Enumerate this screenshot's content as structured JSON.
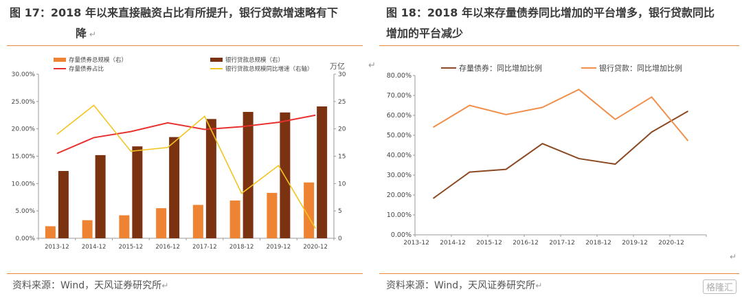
{
  "left": {
    "figure_title_line1": "图 17：2018 年以来直接融资占比有所提升，银行贷款增速略有下",
    "figure_title_line2": "降",
    "source": "资料来源：Wind，天风证券研究所",
    "unit_right": "万亿"
  },
  "right": {
    "figure_title_line1": "图 18：2018 年以来存量债券同比增加的平台增多，银行贷款同比",
    "figure_title_line2": "增加的平台减少",
    "source": "资料来源：Wind，天风证券研究所"
  },
  "watermark": "格隆汇",
  "colors": {
    "orange_bar": "#ee8433",
    "brown_bar": "#7b3210",
    "red_line": "#e8312f",
    "yellow_line": "#f4c320",
    "bond_line": "#8b4a23",
    "loan_line": "#f0904c",
    "rule": "#e8863a"
  },
  "chart_data": [
    {
      "type": "bar",
      "categories": [
        "2013-12",
        "2014-12",
        "2015-12",
        "2016-12",
        "2017-12",
        "2018-12",
        "2019-12",
        "2020-12"
      ],
      "y_left_ticks": [
        "0.00%",
        "5.00%",
        "10.00%",
        "15.00%",
        "20.00%",
        "25.00%",
        "30.00%"
      ],
      "y_right_ticks": [
        "0",
        "5",
        "10",
        "15",
        "20",
        "25",
        "30"
      ],
      "ylim_left": [
        0,
        30
      ],
      "ylim_right": [
        0,
        30
      ],
      "series": [
        {
          "name": "存量债券总规模（右）",
          "type": "bar",
          "axis": "right",
          "values": [
            2.2,
            3.3,
            4.2,
            5.5,
            6.1,
            6.9,
            8.3,
            10.2
          ]
        },
        {
          "name": "银行贷款总规模（右）",
          "type": "bar",
          "axis": "right",
          "values": [
            12.3,
            15.2,
            16.8,
            18.5,
            21.8,
            23.1,
            23.0,
            24.1
          ]
        },
        {
          "name": "存量债券占比",
          "type": "line",
          "axis": "left",
          "values": [
            15.5,
            18.4,
            19.5,
            21.1,
            19.9,
            20.4,
            21.2,
            22.5
          ]
        },
        {
          "name": "银行贷款总规模同比增速（右轴）",
          "type": "line",
          "axis": "right",
          "values": [
            19.0,
            24.3,
            15.9,
            16.6,
            22.3,
            8.2,
            13.3,
            1.8
          ]
        }
      ],
      "legend_position": "top"
    },
    {
      "type": "line",
      "categories": [
        "2013-12",
        "2014-12",
        "2015-12",
        "2016-12",
        "2017-12",
        "2018-12",
        "2019-12",
        "2020-12"
      ],
      "y_ticks": [
        "0.00%",
        "10.00%",
        "20.00%",
        "30.00%",
        "40.00%",
        "50.00%",
        "60.00%",
        "70.00%",
        "80.00%"
      ],
      "ylim": [
        0,
        80
      ],
      "series": [
        {
          "name": "存量债券：同比增加比例",
          "values": [
            18.3,
            31.5,
            32.9,
            45.8,
            38.3,
            35.5,
            51.6,
            62.1
          ]
        },
        {
          "name": "银行贷款：同比增加比例",
          "values": [
            54.0,
            65.0,
            60.4,
            64.0,
            73.0,
            58.0,
            69.2,
            47.2
          ]
        }
      ],
      "legend_position": "top"
    }
  ]
}
